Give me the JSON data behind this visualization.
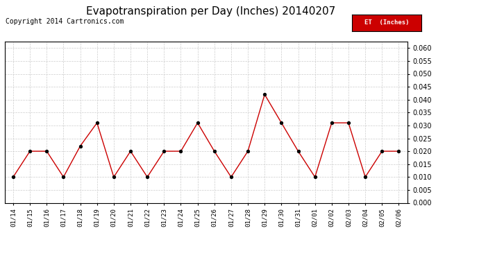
{
  "title": "Evapotranspiration per Day (Inches) 20140207",
  "copyright": "Copyright 2014 Cartronics.com",
  "legend_label": "ET  (Inches)",
  "legend_bg": "#cc0000",
  "legend_text_color": "#ffffff",
  "x_labels": [
    "01/14",
    "01/15",
    "01/16",
    "01/17",
    "01/18",
    "01/19",
    "01/20",
    "01/21",
    "01/22",
    "01/23",
    "01/24",
    "01/25",
    "01/26",
    "01/27",
    "01/28",
    "01/29",
    "01/30",
    "01/31",
    "02/01",
    "02/02",
    "02/03",
    "02/04",
    "02/05",
    "02/06"
  ],
  "y_values": [
    0.01,
    0.02,
    0.02,
    0.01,
    0.022,
    0.031,
    0.01,
    0.02,
    0.01,
    0.02,
    0.02,
    0.031,
    0.02,
    0.01,
    0.02,
    0.042,
    0.031,
    0.02,
    0.01,
    0.031,
    0.031,
    0.01,
    0.02,
    0.02
  ],
  "line_color": "#cc0000",
  "marker_color": "#000000",
  "ylim": [
    0.0,
    0.0625
  ],
  "yticks": [
    0.0,
    0.005,
    0.01,
    0.015,
    0.02,
    0.025,
    0.03,
    0.035,
    0.04,
    0.045,
    0.05,
    0.055,
    0.06
  ],
  "background_color": "#ffffff",
  "grid_color": "#cccccc",
  "title_fontsize": 11,
  "copyright_fontsize": 7
}
